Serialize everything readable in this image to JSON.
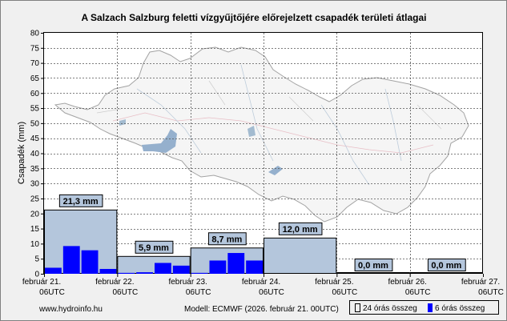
{
  "chart_data": {
    "type": "bar",
    "title": "A Salzach Salzburg feletti vízgyűjtőjére előrejelzett csapadék területi átlagai",
    "ylabel": "Csapadék (mm)",
    "ylim": [
      0,
      80
    ],
    "yticks": [
      0,
      5,
      10,
      15,
      20,
      25,
      30,
      35,
      40,
      45,
      50,
      55,
      60,
      65,
      70,
      75,
      80
    ],
    "x_ticks": [
      {
        "line1": "február 21.",
        "line2": "06UTC"
      },
      {
        "line1": "február 22.",
        "line2": "06UTC"
      },
      {
        "line1": "február 23.",
        "line2": "06UTC"
      },
      {
        "line1": "február 24.",
        "line2": "06UTC"
      },
      {
        "line1": "február 25.",
        "line2": "06UTC"
      },
      {
        "line1": "február 26.",
        "line2": "06UTC"
      },
      {
        "line1": "február 27.",
        "line2": "06UTC"
      }
    ],
    "grid": true,
    "series": [
      {
        "name": "24 órás összeg",
        "color": "#b4c6dc",
        "values": [
          21.3,
          5.9,
          8.7,
          12.0,
          0.0,
          0.0
        ],
        "labels": [
          "21,3 mm",
          "5,9 mm",
          "8,7 mm",
          "12,0 mm",
          "0,0 mm",
          "0,0 mm"
        ]
      },
      {
        "name": "6 órás összeg",
        "color": "#0000ff",
        "values": [
          2.0,
          9.2,
          7.8,
          1.6,
          0.3,
          0.5,
          3.6,
          2.7,
          0.3,
          4.4,
          6.9,
          4.4,
          0,
          0,
          0,
          0,
          0,
          0,
          0,
          0,
          0,
          0,
          0,
          0
        ]
      }
    ]
  },
  "footer": {
    "source": "www.hydroinfo.hu",
    "model": "Modell: ECMWF (2026. február 21. 00UTC)"
  },
  "legend": {
    "daily": "24 órás összeg",
    "sixhour": "6 órás összeg"
  }
}
